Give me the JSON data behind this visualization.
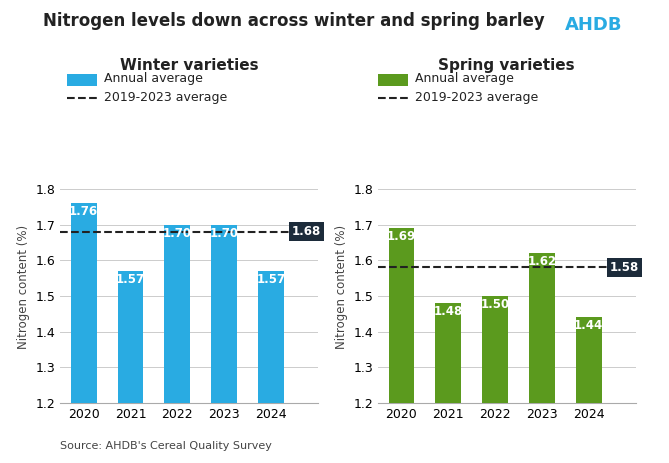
{
  "title": "Nitrogen levels down across winter and spring barley",
  "title_fontsize": 12,
  "source_text": "Source: AHDB's Cereal Quality Survey",
  "winter": {
    "subtitle": "Winter varieties",
    "years": [
      "2020",
      "2021",
      "2022",
      "2023",
      "2024"
    ],
    "values": [
      1.76,
      1.57,
      1.7,
      1.7,
      1.57
    ],
    "avg_2019_2023": 1.68,
    "bar_color": "#29ABE2",
    "avg_label": "1.68",
    "ylabel": "Nitrogen content (%)"
  },
  "spring": {
    "subtitle": "Spring varieties",
    "years": [
      "2020",
      "2021",
      "2022",
      "2023",
      "2024"
    ],
    "values": [
      1.69,
      1.48,
      1.5,
      1.62,
      1.44
    ],
    "avg_2019_2023": 1.58,
    "bar_color": "#5B9A1E",
    "avg_label": "1.58",
    "ylabel": "Nitrogen content (%)"
  },
  "legend_annual": "Annual average",
  "legend_avg": "2019-2023 average",
  "ylim": [
    1.2,
    1.85
  ],
  "yticks": [
    1.2,
    1.3,
    1.4,
    1.5,
    1.6,
    1.7,
    1.8
  ],
  "background_color": "#FFFFFF",
  "avg_line_color": "#222222",
  "bar_label_color": "#FFFFFF",
  "avg_label_bg": "#1C2B3A",
  "subtitle_fontsize": 11,
  "bar_label_fontsize": 8.5,
  "axis_label_fontsize": 8.5,
  "tick_fontsize": 9,
  "legend_fontsize": 9,
  "source_fontsize": 8
}
